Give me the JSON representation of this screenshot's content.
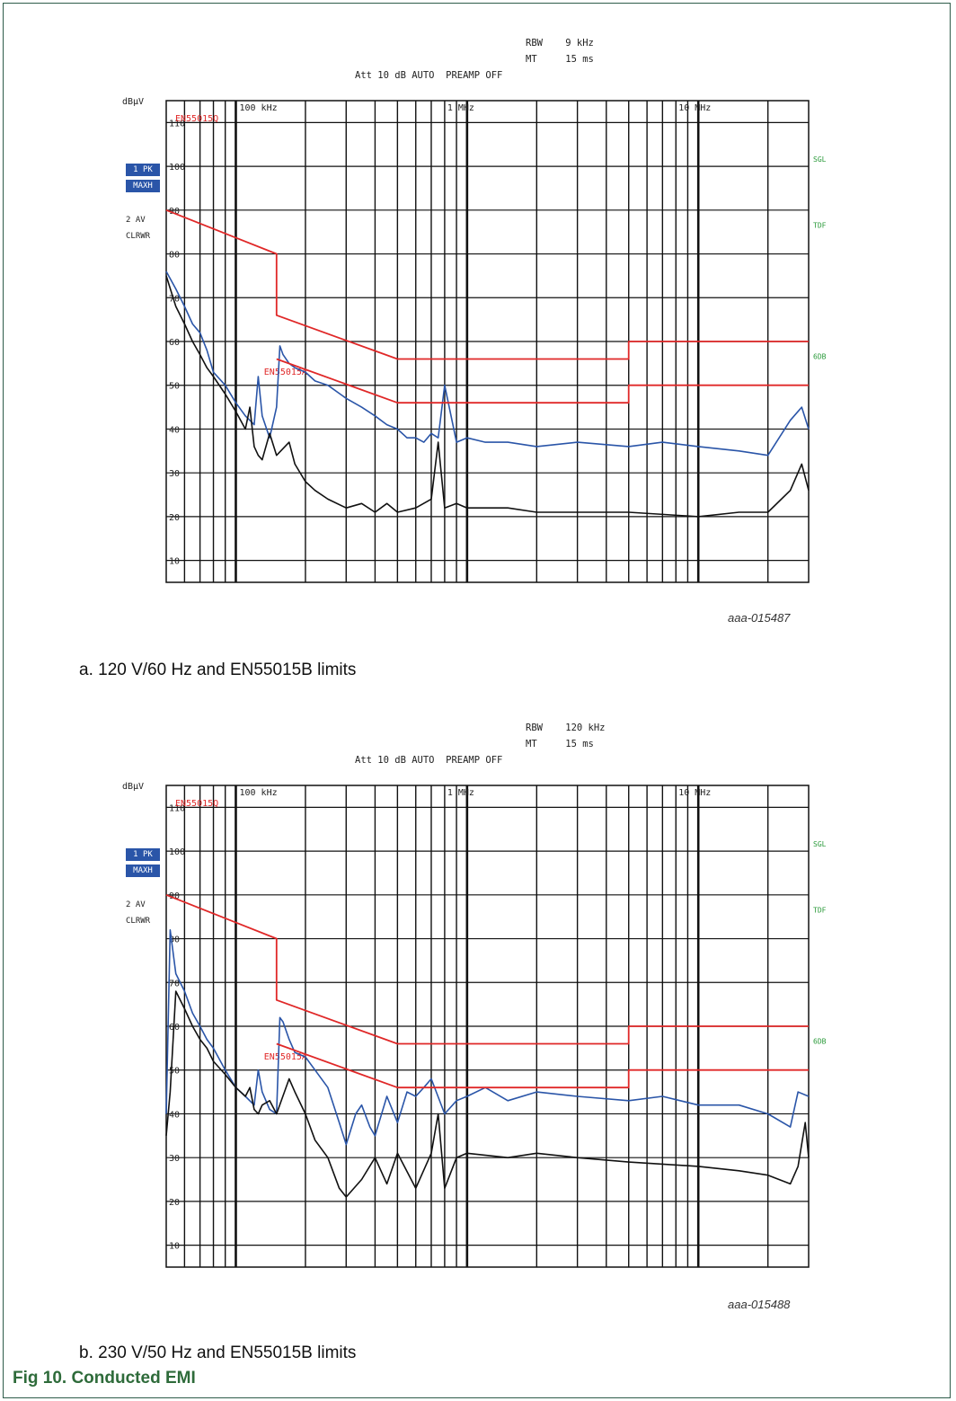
{
  "figure": {
    "title": "Fig 10.   Conducted EMI",
    "accent_color": "#2e6b3a",
    "border_color": "#2e5c4a"
  },
  "charts": [
    {
      "caption": "a.   120 V/60 Hz and EN55015B limits",
      "figure_id": "aaa-015487",
      "header": {
        "rbw": "RBW    9 kHz",
        "mt": "MT     15 ms",
        "att": "Att 10 dB AUTO  PREAMP OFF"
      },
      "unit": "dBµV",
      "trace_labels": {
        "pk": "1 PK",
        "maxh": "MAXH",
        "av": "2 AV",
        "clrwr": "CLRWR"
      },
      "limit_label_top": "EN55015Q",
      "limit_label_mid": "EN55015A",
      "right_labels": [
        "SGL",
        "TDF",
        "6DB"
      ],
      "y_ticks": [
        "110",
        "100",
        "90",
        "80",
        "70",
        "60",
        "50",
        "40",
        "30",
        "20",
        "10"
      ],
      "freq_labels": {
        "start": "50 kHz",
        "stop": "30 MHz",
        "f100k": "100 kHz",
        "f1m": "1 MHz",
        "f10m": "10 MHz"
      }
    },
    {
      "caption": "b.   230 V/50 Hz and EN55015B limits",
      "figure_id": "aaa-015488",
      "header": {
        "rbw": "RBW    120 kHz",
        "mt": "MT     15 ms",
        "att": "Att 10 dB AUTO  PREAMP OFF"
      },
      "unit": "dBµV",
      "trace_labels": {
        "pk": "1 PK",
        "maxh": "MAXH",
        "av": "2 AV",
        "clrwr": "CLRWR"
      },
      "limit_label_top": "EN55015Q",
      "limit_label_mid": "EN55015A",
      "right_labels": [
        "SGL",
        "TDF",
        "6DB"
      ],
      "y_ticks": [
        "110",
        "100",
        "90",
        "80",
        "70",
        "60",
        "50",
        "40",
        "30",
        "20",
        "10"
      ],
      "freq_labels": {
        "start": "50 kHz",
        "stop": "30 MHz",
        "f100k": "100 kHz",
        "f1m": "1 MHz",
        "f10m": "10 MHz"
      }
    }
  ],
  "chart_data": [
    {
      "type": "line",
      "xscale": "log",
      "xlim": [
        50000,
        30000000
      ],
      "ylim": [
        5,
        115
      ],
      "ylabel": "dBµV",
      "grid": true,
      "series": [
        {
          "name": "1 PK",
          "color": "#2a55a8",
          "x": [
            50000,
            55000,
            60000,
            65000,
            70000,
            75000,
            80000,
            90000,
            100000,
            110000,
            120000,
            125000,
            130000,
            140000,
            150000,
            155000,
            160000,
            170000,
            180000,
            200000,
            220000,
            250000,
            300000,
            350000,
            400000,
            450000,
            500000,
            550000,
            600000,
            650000,
            700000,
            750000,
            800000,
            900000,
            1000000,
            1200000,
            1500000,
            2000000,
            3000000,
            5000000,
            7000000,
            10000000,
            15000000,
            20000000,
            25000000,
            28000000,
            30000000
          ],
          "y": [
            76,
            72,
            68,
            64,
            62,
            58,
            53,
            50,
            46,
            43,
            41,
            52,
            43,
            38,
            45,
            59,
            57,
            55,
            54,
            53,
            51,
            50,
            47,
            45,
            43,
            41,
            40,
            38,
            38,
            37,
            39,
            38,
            50,
            37,
            38,
            37,
            37,
            36,
            37,
            36,
            37,
            36,
            35,
            34,
            42,
            45,
            40
          ]
        },
        {
          "name": "2 AV",
          "color": "#111111",
          "x": [
            50000,
            55000,
            60000,
            65000,
            70000,
            75000,
            80000,
            90000,
            100000,
            110000,
            115000,
            120000,
            125000,
            130000,
            140000,
            150000,
            170000,
            180000,
            200000,
            220000,
            250000,
            300000,
            350000,
            400000,
            450000,
            500000,
            600000,
            700000,
            750000,
            800000,
            900000,
            1000000,
            1500000,
            2000000,
            3000000,
            5000000,
            10000000,
            15000000,
            20000000,
            25000000,
            28000000,
            30000000
          ],
          "y": [
            75,
            68,
            64,
            60,
            57,
            54,
            52,
            48,
            44,
            40,
            45,
            36,
            34,
            33,
            39,
            34,
            37,
            32,
            28,
            26,
            24,
            22,
            23,
            21,
            23,
            21,
            22,
            24,
            37,
            22,
            23,
            22,
            22,
            21,
            21,
            21,
            20,
            21,
            21,
            26,
            32,
            26
          ]
        },
        {
          "name": "EN55015Q",
          "color": "#e02828",
          "x": [
            50000,
            150000,
            150000,
            500000,
            5000000,
            5000000,
            30000000
          ],
          "y": [
            90,
            80,
            66,
            56,
            56,
            60,
            60
          ]
        },
        {
          "name": "EN55015A",
          "color": "#e02828",
          "x": [
            150000,
            500000,
            5000000,
            5000000,
            30000000
          ],
          "y": [
            56,
            46,
            46,
            50,
            50
          ]
        }
      ]
    },
    {
      "type": "line",
      "xscale": "log",
      "xlim": [
        50000,
        30000000
      ],
      "ylim": [
        5,
        115
      ],
      "ylabel": "dBµV",
      "grid": true,
      "series": [
        {
          "name": "1 PK",
          "color": "#2a55a8",
          "x": [
            50000,
            52000,
            55000,
            60000,
            65000,
            70000,
            75000,
            80000,
            90000,
            100000,
            110000,
            120000,
            125000,
            130000,
            140000,
            150000,
            155000,
            160000,
            170000,
            180000,
            200000,
            220000,
            250000,
            280000,
            300000,
            330000,
            350000,
            380000,
            400000,
            450000,
            500000,
            550000,
            600000,
            650000,
            700000,
            800000,
            900000,
            1000000,
            1200000,
            1500000,
            2000000,
            3000000,
            5000000,
            7000000,
            10000000,
            15000000,
            20000000,
            25000000,
            27000000,
            30000000
          ],
          "y": [
            40,
            82,
            72,
            68,
            63,
            60,
            57,
            55,
            50,
            46,
            44,
            42,
            50,
            45,
            41,
            40,
            62,
            61,
            57,
            54,
            53,
            50,
            46,
            38,
            33,
            40,
            42,
            37,
            35,
            44,
            38,
            45,
            44,
            46,
            48,
            40,
            43,
            44,
            46,
            43,
            45,
            44,
            43,
            44,
            42,
            42,
            40,
            37,
            45,
            44
          ]
        },
        {
          "name": "2 AV",
          "color": "#111111",
          "x": [
            50000,
            52000,
            55000,
            60000,
            65000,
            70000,
            75000,
            80000,
            90000,
            100000,
            110000,
            115000,
            120000,
            125000,
            130000,
            140000,
            150000,
            170000,
            180000,
            200000,
            220000,
            250000,
            280000,
            300000,
            350000,
            400000,
            450000,
            500000,
            600000,
            700000,
            750000,
            800000,
            900000,
            1000000,
            1500000,
            2000000,
            3000000,
            5000000,
            10000000,
            15000000,
            20000000,
            25000000,
            27000000,
            29000000,
            30000000
          ],
          "y": [
            35,
            45,
            68,
            64,
            60,
            57,
            55,
            52,
            49,
            46,
            44,
            46,
            41,
            40,
            42,
            43,
            40,
            48,
            45,
            40,
            34,
            30,
            23,
            21,
            25,
            30,
            24,
            31,
            23,
            31,
            40,
            23,
            30,
            31,
            30,
            31,
            30,
            29,
            28,
            27,
            26,
            24,
            28,
            38,
            30
          ]
        },
        {
          "name": "EN55015Q",
          "color": "#e02828",
          "x": [
            50000,
            150000,
            150000,
            500000,
            5000000,
            5000000,
            30000000
          ],
          "y": [
            90,
            80,
            66,
            56,
            56,
            60,
            60
          ]
        },
        {
          "name": "EN55015A",
          "color": "#e02828",
          "x": [
            150000,
            500000,
            5000000,
            5000000,
            30000000
          ],
          "y": [
            56,
            46,
            46,
            50,
            50
          ]
        }
      ]
    }
  ]
}
